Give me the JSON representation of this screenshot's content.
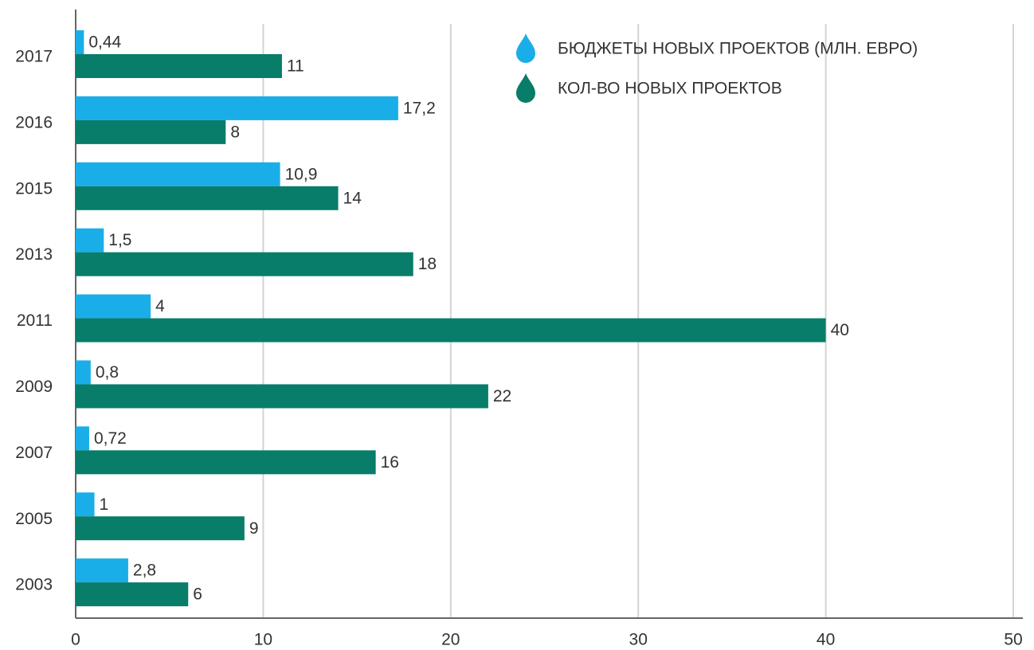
{
  "chart_data": {
    "type": "hbar",
    "categories": [
      "2017",
      "2016",
      "2015",
      "2013",
      "2011",
      "2009",
      "2007",
      "2005",
      "2003"
    ],
    "series": [
      {
        "name": "БЮДЖЕТЫ НОВЫХ ПРОЕКТОВ (МЛН. ЕВРО)",
        "color": "#1aaee8",
        "values": [
          0.44,
          17.2,
          10.9,
          1.5,
          4,
          0.8,
          0.72,
          1,
          2.8
        ],
        "value_labels": [
          "0,44",
          "17,2",
          "10,9",
          "1,5",
          "4",
          "0,8",
          "0,72",
          "1",
          "2,8"
        ]
      },
      {
        "name": "КОЛ-ВО НОВЫХ ПРОЕКТОВ",
        "color": "#077d6a",
        "values": [
          11,
          8,
          14,
          18,
          40,
          22,
          16,
          9,
          6
        ]
      }
    ],
    "xlim": [
      0,
      50
    ],
    "xticks": [
      0,
      10,
      20,
      30,
      40,
      50
    ],
    "grid": true,
    "legend": "upper right"
  }
}
